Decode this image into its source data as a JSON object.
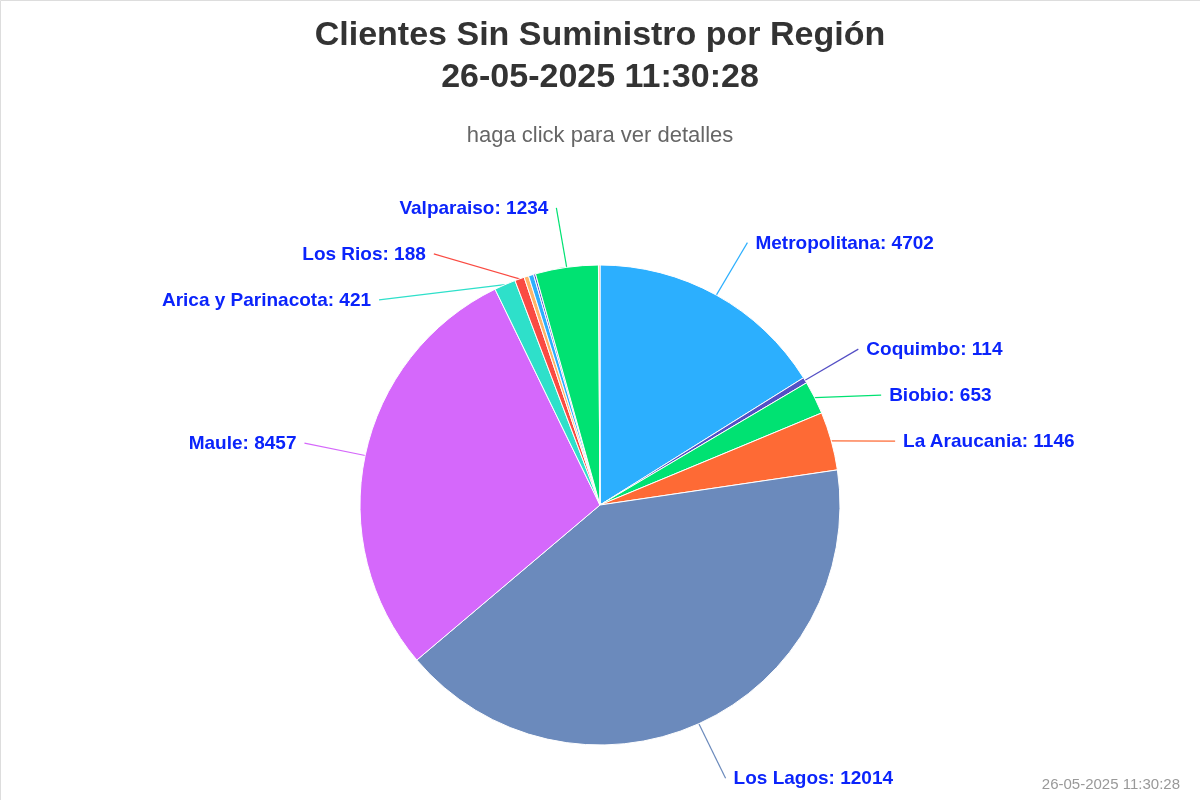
{
  "chart_data": {
    "type": "pie",
    "title": "Clientes Sin Suministro por Región\n26-05-2025 11:30:28",
    "subtitle": "haga click para ver detalles",
    "annotations": [
      "26-05-2025 11:30:28"
    ],
    "categories": [
      null,
      null,
      null,
      null,
      null,
      null,
      null,
      null,
      null,
      null,
      null,
      null,
      null
    ],
    "values": [
      4702,
      114,
      653,
      1146,
      12014,
      8457,
      421,
      188,
      90,
      100,
      40,
      1234,
      30
    ],
    "colors": [
      "#2caffe",
      "#544fc5",
      "#00e272",
      "#fe6a35",
      "#6b8abc",
      "#d568fb",
      "#2ee0ca",
      "#fa4b42",
      "#feb56a",
      "#2caffe",
      "#544fc5",
      "#00e272",
      "#fe9a80"
    ],
    "value_labels": [
      "Metropolitana: 4702",
      "Coquimbo: 114",
      "Biobio: 653",
      "La Araucania: 1146",
      "Los Lagos: 12014",
      "Maule: 8457",
      "Arica y Parinacota: 421",
      "Los Rios: 188",
      null,
      null,
      null,
      "Valparaiso: 1234",
      null
    ]
  }
}
